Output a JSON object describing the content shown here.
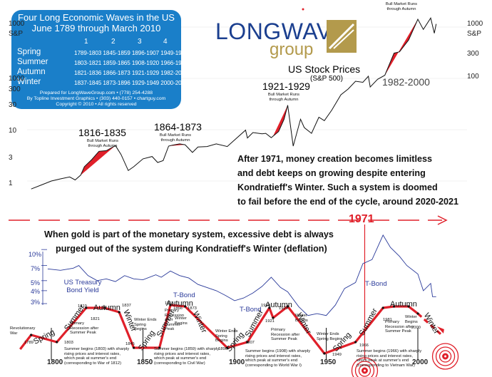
{
  "info_box": {
    "title_line1": "Four Long Economic Waves in the US",
    "title_line2": "June 1789 through March 2010",
    "wave_numbers": [
      "1",
      "2",
      "3",
      "4"
    ],
    "rows": [
      {
        "season": "Spring",
        "values": "1789-1803 1845-1859 1896-1907 1949-1966"
      },
      {
        "season": "Summer",
        "values": "1803-1821 1859-1865 1908-1920 1966-1981"
      },
      {
        "season": "Autumn",
        "values": "1821-1836 1866-1873 1921-1929 1982-2000"
      },
      {
        "season": "Winter",
        "values": "1837-1845 1873-1896 1929-1949 2000-2020?"
      }
    ],
    "footer1": "Prepared for LongWaveGroup.com • (778) 254-4288",
    "footer2": "By Topline Investment Graphics • (303) 440-0157 • chartguy.com",
    "footer3": "Copyright © 2010 • All rights reserved"
  },
  "logo": {
    "word1": "LONGWAVE",
    "word2": "group"
  },
  "notes": {
    "n1971_l1": "After 1971, money creation becomes limitless",
    "n1971_l2": "and debt keeps on growing despite entering",
    "n1971_l3": "Kondratieff's Winter. Such a system is doomed",
    "n1971_l4": "to fail before the end of the cycle, around 2020-2021",
    "gold_l1": "When gold is part of the monetary system, excessive debt is always",
    "gold_l2": "purged out of the system during Kondratieff's Winter (deflation)",
    "marker_1971": "1971"
  },
  "chart_data": [
    {
      "type": "line",
      "title": "US Stock Prices",
      "subtitle": "(S&P 500)",
      "ylabel_left": "S&P",
      "ylabel_right": "S&P",
      "scale": "log",
      "y_ticks": [
        "1000",
        "300",
        "100",
        "30",
        "10",
        "3",
        "1"
      ],
      "x_range": [
        1789,
        2012
      ],
      "series": [
        {
          "points": [
            [
              1789,
              0.7
            ],
            [
              1795,
              0.85
            ],
            [
              1800,
              1.0
            ],
            [
              1805,
              1.1
            ],
            [
              1810,
              1.2
            ],
            [
              1813,
              1.05
            ],
            [
              1816,
              1.3
            ],
            [
              1818,
              1.9
            ],
            [
              1822,
              2.6
            ],
            [
              1826,
              3.8
            ],
            [
              1830,
              3.9
            ],
            [
              1835,
              4.9
            ],
            [
              1838,
              3.3
            ],
            [
              1842,
              1.6
            ],
            [
              1845,
              1.9
            ],
            [
              1850,
              2.7
            ],
            [
              1855,
              3.0
            ],
            [
              1858,
              2.3
            ],
            [
              1861,
              2.5
            ],
            [
              1864,
              4.8
            ],
            [
              1866,
              5.0
            ],
            [
              1870,
              5.3
            ],
            [
              1873,
              5.1
            ],
            [
              1877,
              3.6
            ],
            [
              1880,
              4.6
            ],
            [
              1885,
              4.7
            ],
            [
              1890,
              5.3
            ],
            [
              1896,
              4.7
            ],
            [
              1900,
              6.3
            ],
            [
              1906,
              9.8
            ],
            [
              1907,
              6.9
            ],
            [
              1910,
              8.8
            ],
            [
              1915,
              8.3
            ],
            [
              1917,
              8.5
            ],
            [
              1920,
              7.0
            ],
            [
              1924,
              9.2
            ],
            [
              1927,
              16.0
            ],
            [
              1929,
              30.0
            ],
            [
              1932,
              4.8
            ],
            [
              1936,
              16.0
            ],
            [
              1938,
              11.0
            ],
            [
              1942,
              8.5
            ],
            [
              1946,
              17.5
            ],
            [
              1949,
              15.0
            ],
            [
              1953,
              24.0
            ],
            [
              1958,
              48.0
            ],
            [
              1962,
              62.0
            ],
            [
              1966,
              88.0
            ],
            [
              1970,
              84.0
            ],
            [
              1973,
              110.0
            ],
            [
              1974,
              68.0
            ],
            [
              1978,
              96.0
            ],
            [
              1982,
              115.0
            ],
            [
              1987,
              310.0
            ],
            [
              1990,
              330.0
            ],
            [
              1995,
              560.0
            ],
            [
              2000,
              1420.0
            ],
            [
              2003,
              900.0
            ],
            [
              2007,
              1500.0
            ],
            [
              2009,
              760.0
            ],
            [
              2010,
              1150.0
            ]
          ]
        }
      ],
      "bull_markets": [
        {
          "label": "1816-1835",
          "note": "Bull Market Runs through Autumn"
        },
        {
          "label": "1864-1873",
          "note": "Bull Market Runs through Autumn"
        },
        {
          "label": "1921-1929",
          "note": "Bull Market Runs through Autumn"
        },
        {
          "label": "1982-2000",
          "note": "Bull Market Runs through Autumn"
        }
      ]
    },
    {
      "type": "line",
      "title": "US Treasury Bond Yield",
      "series_label": "T-Bond",
      "y_ticks": [
        "10%",
        "7%",
        "5%",
        "4%",
        "3%"
      ],
      "x_ticks": [
        "1800",
        "1850",
        "1900",
        "1950",
        "2000"
      ],
      "extra_x_label": "1789",
      "series": [
        {
          "points": [
            [
              1798,
              6.5
            ],
            [
              1805,
              6.3
            ],
            [
              1812,
              6.6
            ],
            [
              1815,
              7.0
            ],
            [
              1820,
              5.6
            ],
            [
              1825,
              5.0
            ],
            [
              1830,
              5.2
            ],
            [
              1835,
              4.9
            ],
            [
              1840,
              5.6
            ],
            [
              1845,
              5.2
            ],
            [
              1850,
              5.1
            ],
            [
              1857,
              5.7
            ],
            [
              1860,
              5.4
            ],
            [
              1865,
              6.2
            ],
            [
              1870,
              5.6
            ],
            [
              1875,
              5.3
            ],
            [
              1880,
              4.6
            ],
            [
              1890,
              4.0
            ],
            [
              1895,
              3.6
            ],
            [
              1900,
              3.2
            ],
            [
              1905,
              3.4
            ],
            [
              1910,
              3.8
            ],
            [
              1915,
              4.4
            ],
            [
              1920,
              5.4
            ],
            [
              1925,
              4.3
            ],
            [
              1929,
              3.9
            ],
            [
              1935,
              2.8
            ],
            [
              1940,
              2.3
            ],
            [
              1945,
              2.4
            ],
            [
              1950,
              2.3
            ],
            [
              1955,
              2.9
            ],
            [
              1960,
              4.2
            ],
            [
              1966,
              4.8
            ],
            [
              1970,
              7.3
            ],
            [
              1975,
              8.0
            ],
            [
              1981,
              13.8
            ],
            [
              1985,
              10.5
            ],
            [
              1990,
              8.6
            ],
            [
              1994,
              7.0
            ],
            [
              2000,
              5.8
            ],
            [
              2003,
              4.0
            ],
            [
              2007,
              4.7
            ],
            [
              2008,
              3.5
            ],
            [
              2010,
              3.5
            ]
          ]
        }
      ],
      "season_labels": [
        "Spring",
        "Summer",
        "Autumn",
        "Winter",
        "Spring",
        "Summer",
        "Autumn",
        "Winter",
        "Spring",
        "Summer",
        "Autumn",
        "Winter",
        "Spring",
        "Summer",
        "Autumn",
        "Winter"
      ],
      "annotations": {
        "revolutionary_war": "Revolutionary War",
        "primary_recession": "Primary Recession after Summer Peak",
        "winter_ends": "Winter Ends Spring Begins",
        "winter_begins": "Winter Begins",
        "summer_1803": "Summer begins (1803) with sharply rising prices and interest rates, which peak at summer's end (corresponding to War of 1812)",
        "summer_1859": "Summer begins (1859) with sharply rising prices and interest rates, which peak at summer's end (corresponding to Civil War)",
        "summer_1908": "Summer begins (1908) with sharply rising prices and interest rates, which peak at summer's end (corresponding to World War I)",
        "summer_1966": "Summer begins (1966) with sharply rising prices and interest rates, which peak at summer's end (corresponding to Vietnam War)",
        "years": [
          "1789",
          "1803",
          "1819",
          "1821",
          "1837",
          "1845",
          "1865",
          "1866",
          "1873",
          "1896",
          "1907",
          "1919",
          "1921",
          "1929",
          "1949",
          "1966",
          "1981",
          "2000"
        ]
      }
    }
  ],
  "colors": {
    "box_blue": "#1a7fc9",
    "bull_red": "#e0202a",
    "bond_blue": "#2a3a9a",
    "cycle_red": "#e0202a",
    "logo_blue": "#1b3f8f",
    "logo_gold": "#b39a4c"
  }
}
